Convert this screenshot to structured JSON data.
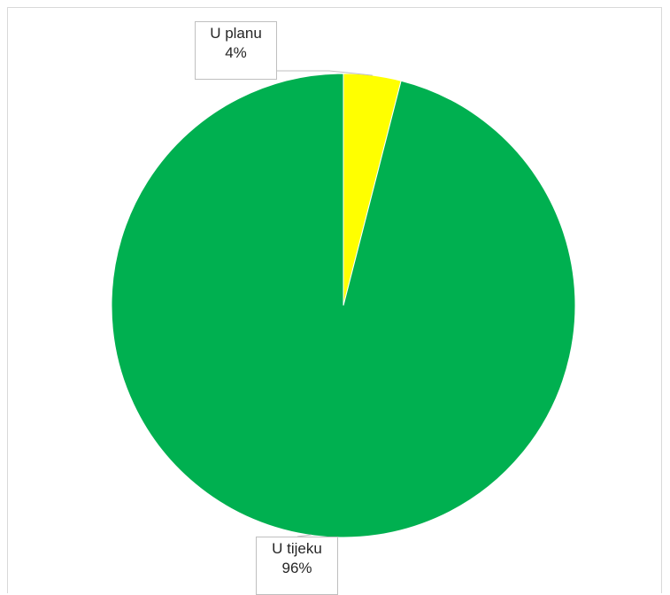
{
  "chart_data": {
    "type": "pie",
    "title": "",
    "slices": [
      {
        "label": "U planu",
        "percent_label": "4%",
        "value": 4,
        "color": "#ffff00"
      },
      {
        "label": "U tijeku",
        "percent_label": "96%",
        "value": 96,
        "color": "#00b050"
      }
    ],
    "start_angle_deg": 0,
    "direction": "clockwise",
    "legend": "none",
    "data_labels": "outside-callout"
  }
}
